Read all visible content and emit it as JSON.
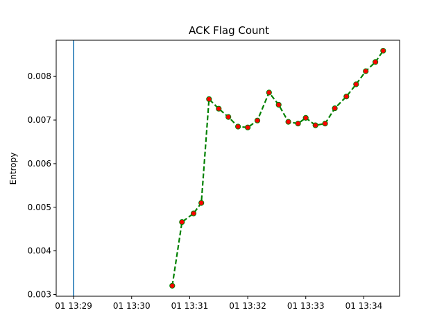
{
  "chart_data": {
    "type": "line",
    "title": "ACK Flag Count",
    "xlabel": "",
    "ylabel": "Entropy",
    "x_ticks": [
      "01 13:29",
      "01 13:30",
      "01 13:31",
      "01 13:32",
      "01 13:33",
      "01 13:34"
    ],
    "y_ticks": [
      "0.003",
      "0.004",
      "0.005",
      "0.006",
      "0.007",
      "0.008"
    ],
    "xlim": [
      "13:28:42",
      "13:34:37"
    ],
    "ylim": [
      0.00296,
      0.00883
    ],
    "grid": false,
    "vertical_line": {
      "x": "13:29:00",
      "color": "#1f77b4"
    },
    "series": [
      {
        "line_color": "#008000",
        "marker_color": "#ff0000",
        "line_style": "dashed",
        "x": [
          "13:30:42",
          "13:30:52",
          "13:31:04",
          "13:31:12",
          "13:31:20",
          "13:31:30",
          "13:31:40",
          "13:31:50",
          "13:32:00",
          "13:32:10",
          "13:32:22",
          "13:32:32",
          "13:32:42",
          "13:32:52",
          "13:33:00",
          "13:33:10",
          "13:33:20",
          "13:33:30",
          "13:33:42",
          "13:33:52",
          "13:34:02",
          "13:34:12",
          "13:34:20"
        ],
        "values": [
          0.0032,
          0.00466,
          0.00486,
          0.0051,
          0.00748,
          0.00726,
          0.00707,
          0.00685,
          0.00683,
          0.00699,
          0.00763,
          0.00735,
          0.00696,
          0.00692,
          0.00705,
          0.00688,
          0.00692,
          0.00727,
          0.00754,
          0.00782,
          0.00812,
          0.00833,
          0.00859
        ]
      }
    ]
  }
}
